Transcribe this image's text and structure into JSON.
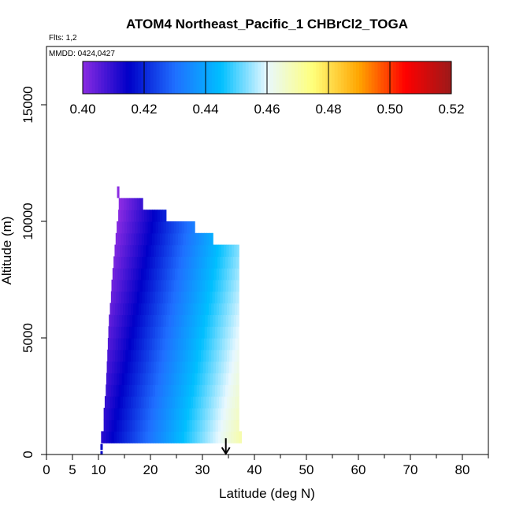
{
  "chart_data": {
    "type": "heatmap",
    "title": "ATOM4 Northeast_Pacific_1 CHBrCl2_TOGA",
    "flights_note": "Flts: 1,2",
    "dates_note": "MMDD: 0424,0427",
    "xlabel": "Latitude (deg N)",
    "ylabel": "Altitude (m)",
    "xlim": [
      0,
      85
    ],
    "ylim": [
      0,
      17500
    ],
    "x_ticks": [
      0,
      5,
      10,
      20,
      30,
      40,
      50,
      60,
      70,
      80
    ],
    "x_tick_labels": [
      "0",
      "5",
      "10",
      "20",
      "30",
      "40",
      "50",
      "60",
      "70",
      "80"
    ],
    "y_ticks": [
      0,
      5000,
      10000,
      15000
    ],
    "y_tick_labels": [
      "0",
      "5000",
      "10000",
      "15000"
    ],
    "colorbar": {
      "min": 0.4,
      "max": 0.52,
      "ticks": [
        0.4,
        0.42,
        0.44,
        0.46,
        0.48,
        0.5,
        0.52
      ],
      "tick_labels": [
        "0.40",
        "0.42",
        "0.44",
        "0.46",
        "0.48",
        "0.50",
        "0.52"
      ],
      "colors": [
        "#8a2be2",
        "#0000c8",
        "#1f6fff",
        "#00bfff",
        "#e8f8ff",
        "#ffff7a",
        "#ffa500",
        "#ff0000",
        "#9b1a1a"
      ]
    },
    "layers": [
      {
        "alt_bottom": 500,
        "alt_top": 1000,
        "lat_min": 10.5,
        "lat_max": 37.5
      },
      {
        "alt_bottom": 1000,
        "alt_top": 1500,
        "lat_min": 11.0,
        "lat_max": 37.0
      },
      {
        "alt_bottom": 1500,
        "alt_top": 2000,
        "lat_min": 11.0,
        "lat_max": 37.0
      },
      {
        "alt_bottom": 2000,
        "alt_top": 2500,
        "lat_min": 11.2,
        "lat_max": 37.0
      },
      {
        "alt_bottom": 2500,
        "alt_top": 3000,
        "lat_min": 11.4,
        "lat_max": 37.0
      },
      {
        "alt_bottom": 3000,
        "alt_top": 3500,
        "lat_min": 11.5,
        "lat_max": 37.0
      },
      {
        "alt_bottom": 3500,
        "alt_top": 4000,
        "lat_min": 11.6,
        "lat_max": 37.0
      },
      {
        "alt_bottom": 4000,
        "alt_top": 4500,
        "lat_min": 11.7,
        "lat_max": 37.0
      },
      {
        "alt_bottom": 4500,
        "alt_top": 5000,
        "lat_min": 11.8,
        "lat_max": 37.0
      },
      {
        "alt_bottom": 5000,
        "alt_top": 5500,
        "lat_min": 11.9,
        "lat_max": 37.0
      },
      {
        "alt_bottom": 5500,
        "alt_top": 6000,
        "lat_min": 12.0,
        "lat_max": 37.0
      },
      {
        "alt_bottom": 6000,
        "alt_top": 6500,
        "lat_min": 12.2,
        "lat_max": 37.0
      },
      {
        "alt_bottom": 6500,
        "alt_top": 7000,
        "lat_min": 12.4,
        "lat_max": 37.0
      },
      {
        "alt_bottom": 7000,
        "alt_top": 7500,
        "lat_min": 12.5,
        "lat_max": 37.0
      },
      {
        "alt_bottom": 7500,
        "alt_top": 8000,
        "lat_min": 12.7,
        "lat_max": 37.0
      },
      {
        "alt_bottom": 8000,
        "alt_top": 8500,
        "lat_min": 12.9,
        "lat_max": 37.0
      },
      {
        "alt_bottom": 8500,
        "alt_top": 9000,
        "lat_min": 13.1,
        "lat_max": 37.0
      },
      {
        "alt_bottom": 9000,
        "alt_top": 9500,
        "lat_min": 13.3,
        "lat_max": 32.0
      },
      {
        "alt_bottom": 9500,
        "alt_top": 10000,
        "lat_min": 13.5,
        "lat_max": 28.5
      },
      {
        "alt_bottom": 10000,
        "alt_top": 10500,
        "lat_min": 13.8,
        "lat_max": 23.0
      },
      {
        "alt_bottom": 10500,
        "alt_top": 11000,
        "lat_min": 13.9,
        "lat_max": 18.5
      }
    ],
    "gradient": {
      "base_value": 0.4105,
      "per_deg_lat": 0.0022,
      "per_km_alt": -0.00185
    },
    "extra_marks": [
      {
        "lat": 13.8,
        "alt_bottom": 11000,
        "alt_top": 11500,
        "value": 0.4
      },
      {
        "lat": 10.6,
        "alt_bottom": 0,
        "alt_top": 150,
        "value": 0.415
      },
      {
        "lat": 10.6,
        "alt_bottom": 200,
        "alt_top": 450,
        "value": 0.415
      }
    ],
    "arrow": {
      "lat": 34.5,
      "alt_from": 700,
      "alt_to": 0
    }
  }
}
